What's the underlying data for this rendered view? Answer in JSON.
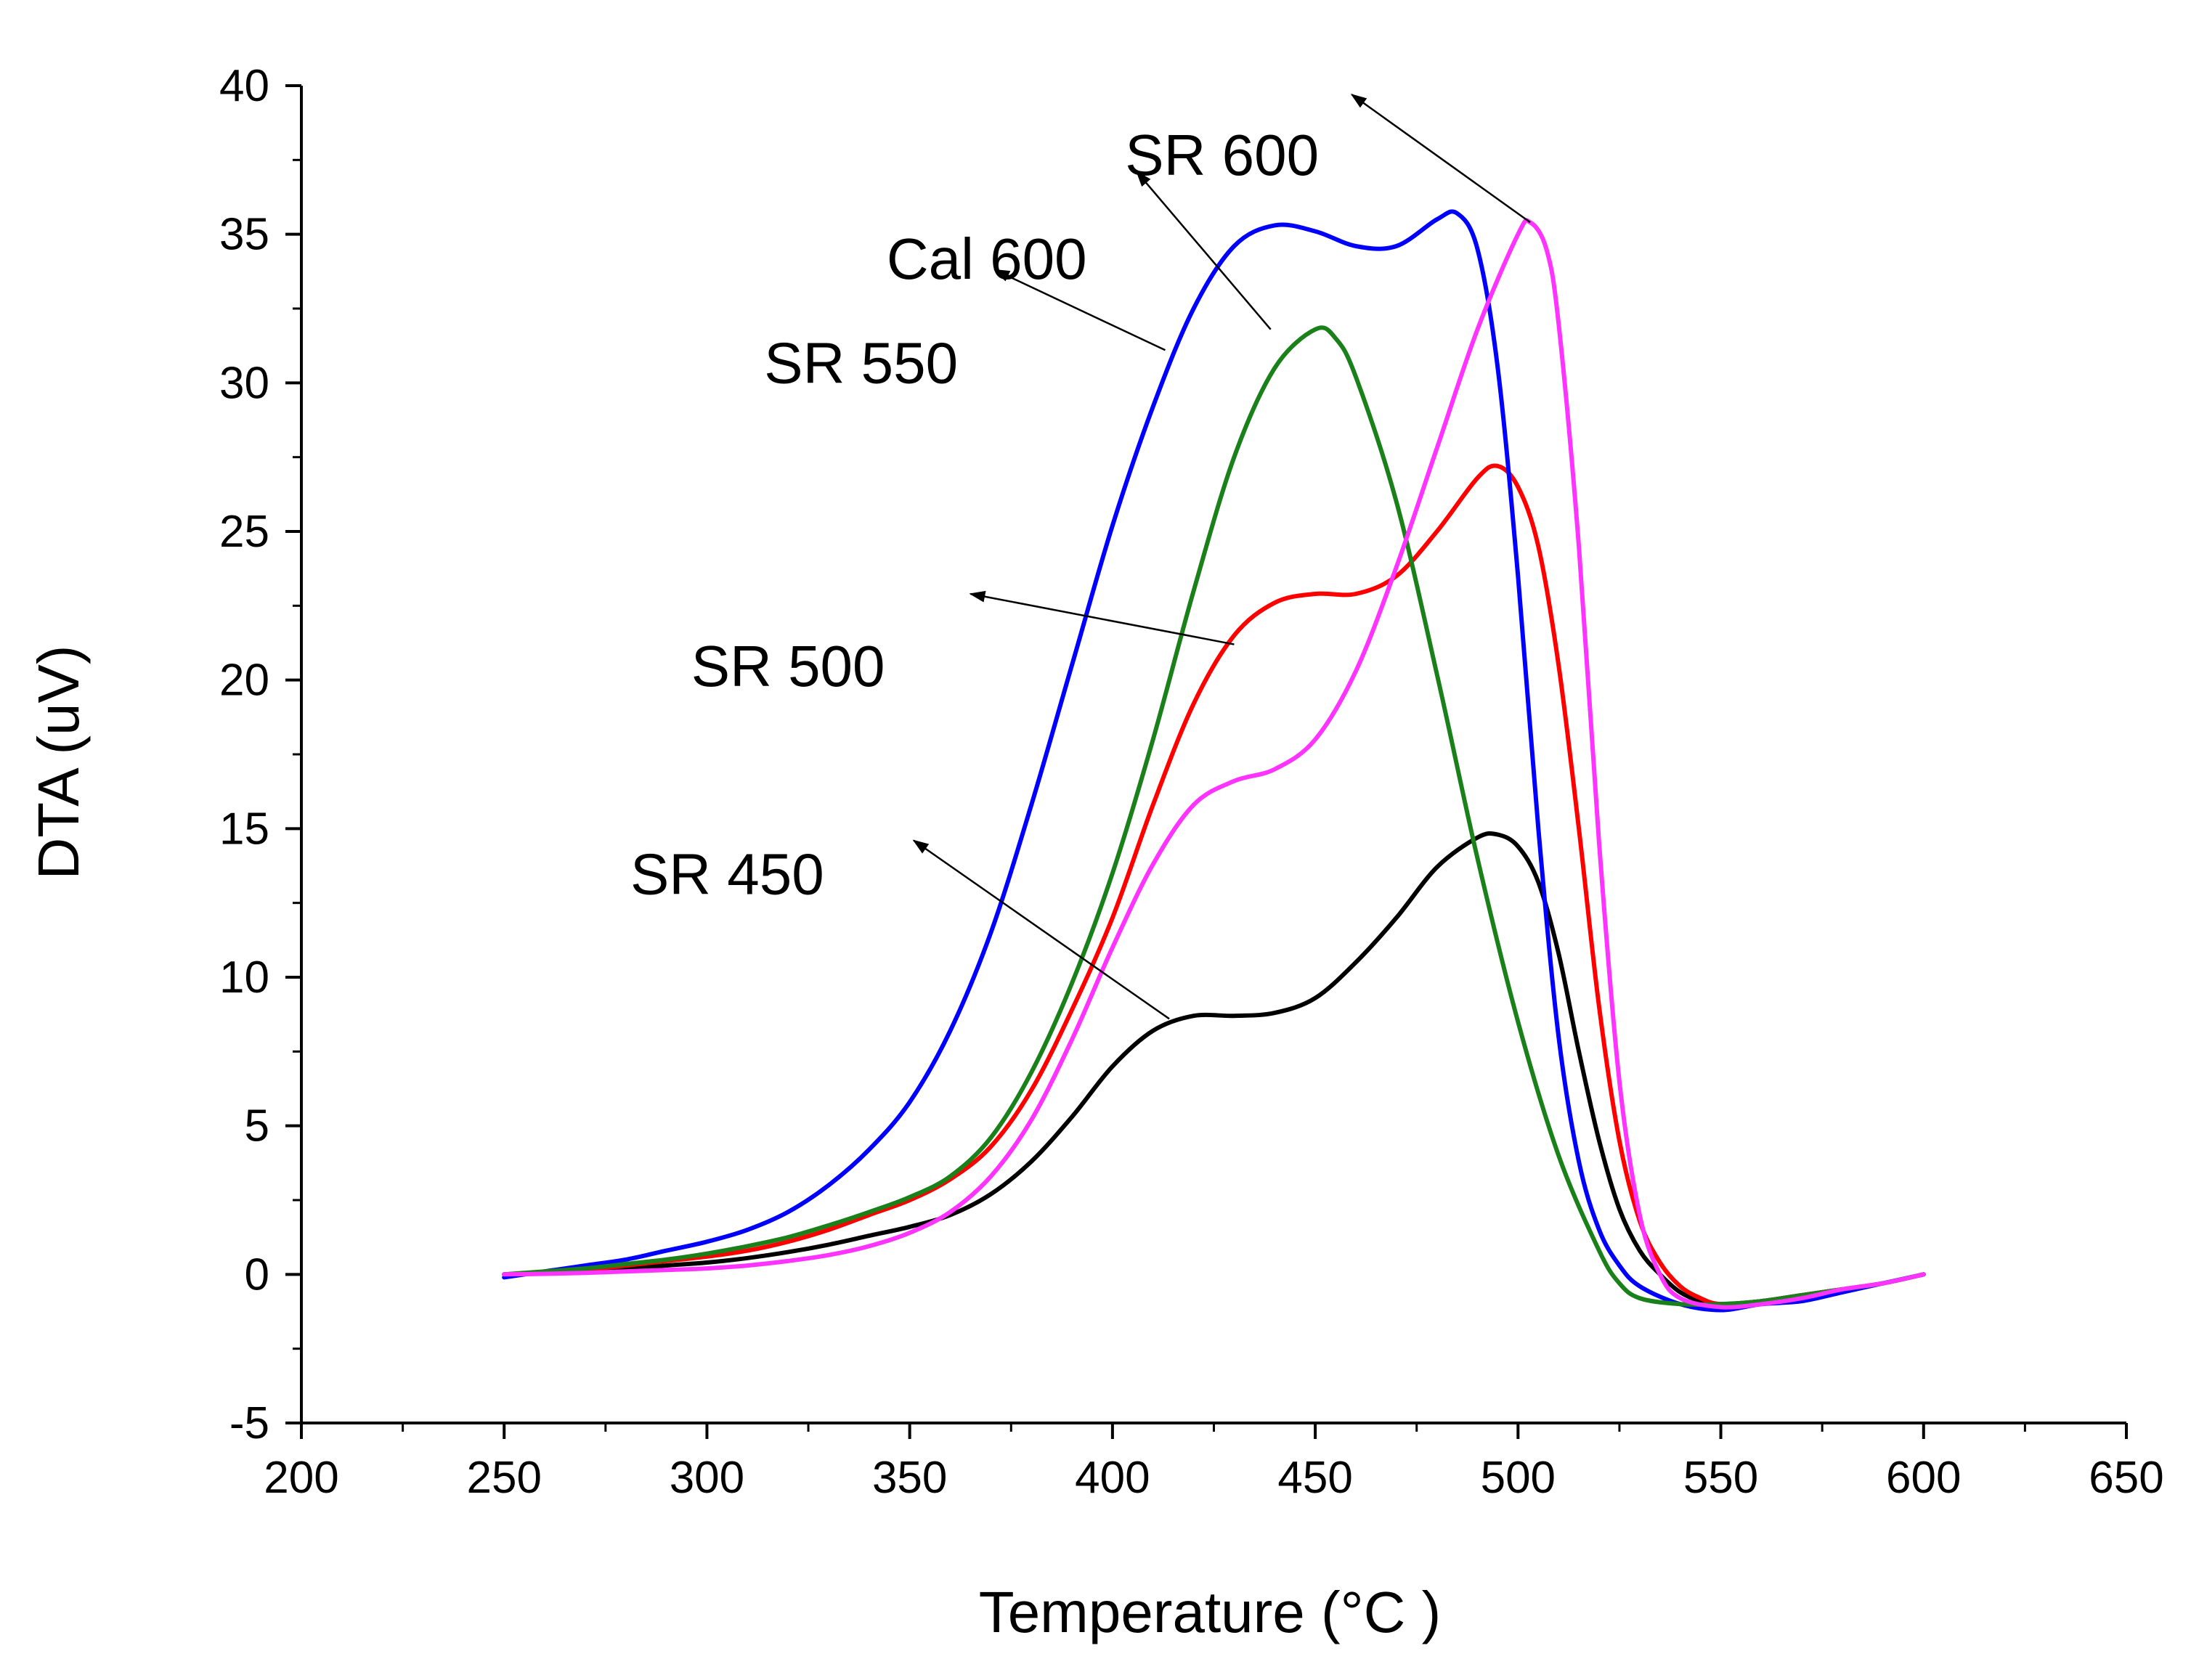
{
  "chart_data": {
    "type": "line",
    "title": "",
    "xlabel": "Temperature (°C )",
    "ylabel": "DTA (uV)",
    "xlim": [
      200,
      650
    ],
    "ylim": [
      -5,
      40
    ],
    "xticks": [
      200,
      250,
      300,
      350,
      400,
      450,
      500,
      550,
      600,
      650
    ],
    "yticks": [
      -5,
      0,
      5,
      10,
      15,
      20,
      25,
      30,
      35,
      40
    ],
    "grid": false,
    "legend": "none",
    "series": [
      {
        "name": "SR 450",
        "color": "#000000",
        "points": [
          [
            250,
            0
          ],
          [
            260,
            0.05
          ],
          [
            270,
            0.1
          ],
          [
            280,
            0.2
          ],
          [
            290,
            0.3
          ],
          [
            300,
            0.4
          ],
          [
            310,
            0.55
          ],
          [
            320,
            0.75
          ],
          [
            330,
            1.0
          ],
          [
            340,
            1.3
          ],
          [
            350,
            1.6
          ],
          [
            360,
            2.0
          ],
          [
            370,
            2.7
          ],
          [
            380,
            3.8
          ],
          [
            390,
            5.3
          ],
          [
            400,
            7.0
          ],
          [
            410,
            8.2
          ],
          [
            420,
            8.7
          ],
          [
            430,
            8.7
          ],
          [
            440,
            8.8
          ],
          [
            450,
            9.3
          ],
          [
            460,
            10.5
          ],
          [
            470,
            12.0
          ],
          [
            480,
            13.7
          ],
          [
            490,
            14.7
          ],
          [
            495,
            14.8
          ],
          [
            500,
            14.4
          ],
          [
            505,
            13.2
          ],
          [
            510,
            10.8
          ],
          [
            515,
            7.5
          ],
          [
            520,
            4.5
          ],
          [
            525,
            2.2
          ],
          [
            530,
            0.8
          ],
          [
            535,
            0.0
          ],
          [
            540,
            -0.6
          ],
          [
            545,
            -0.9
          ],
          [
            550,
            -1.0
          ],
          [
            560,
            -0.9
          ],
          [
            570,
            -0.7
          ],
          [
            580,
            -0.5
          ],
          [
            590,
            -0.3
          ],
          [
            600,
            0
          ]
        ]
      },
      {
        "name": "SR 500",
        "color": "#ff0000",
        "points": [
          [
            250,
            0
          ],
          [
            260,
            0.05
          ],
          [
            270,
            0.15
          ],
          [
            280,
            0.3
          ],
          [
            290,
            0.45
          ],
          [
            300,
            0.6
          ],
          [
            310,
            0.8
          ],
          [
            320,
            1.1
          ],
          [
            330,
            1.5
          ],
          [
            340,
            2.0
          ],
          [
            350,
            2.5
          ],
          [
            360,
            3.2
          ],
          [
            370,
            4.3
          ],
          [
            380,
            6.2
          ],
          [
            390,
            8.9
          ],
          [
            400,
            12.0
          ],
          [
            410,
            15.8
          ],
          [
            420,
            19.2
          ],
          [
            430,
            21.5
          ],
          [
            440,
            22.6
          ],
          [
            450,
            22.9
          ],
          [
            460,
            22.9
          ],
          [
            470,
            23.5
          ],
          [
            480,
            25.0
          ],
          [
            490,
            26.8
          ],
          [
            495,
            27.2
          ],
          [
            500,
            26.5
          ],
          [
            505,
            24.5
          ],
          [
            510,
            20.5
          ],
          [
            515,
            15.0
          ],
          [
            520,
            9.0
          ],
          [
            525,
            4.5
          ],
          [
            530,
            1.8
          ],
          [
            535,
            0.4
          ],
          [
            540,
            -0.4
          ],
          [
            545,
            -0.8
          ],
          [
            550,
            -1.0
          ],
          [
            560,
            -0.9
          ],
          [
            570,
            -0.7
          ],
          [
            580,
            -0.5
          ],
          [
            590,
            -0.3
          ],
          [
            600,
            0
          ]
        ]
      },
      {
        "name": "SR 550",
        "color": "#0000ff",
        "points": [
          [
            250,
            -0.1
          ],
          [
            260,
            0.1
          ],
          [
            270,
            0.3
          ],
          [
            280,
            0.5
          ],
          [
            290,
            0.8
          ],
          [
            300,
            1.1
          ],
          [
            310,
            1.5
          ],
          [
            320,
            2.1
          ],
          [
            330,
            3.0
          ],
          [
            340,
            4.2
          ],
          [
            350,
            5.8
          ],
          [
            360,
            8.2
          ],
          [
            370,
            11.5
          ],
          [
            380,
            15.8
          ],
          [
            390,
            20.5
          ],
          [
            400,
            25.2
          ],
          [
            410,
            29.2
          ],
          [
            420,
            32.5
          ],
          [
            430,
            34.6
          ],
          [
            440,
            35.3
          ],
          [
            450,
            35.1
          ],
          [
            460,
            34.6
          ],
          [
            470,
            34.6
          ],
          [
            480,
            35.5
          ],
          [
            485,
            35.7
          ],
          [
            490,
            34.5
          ],
          [
            495,
            30.5
          ],
          [
            500,
            23.5
          ],
          [
            505,
            15.0
          ],
          [
            510,
            8.0
          ],
          [
            515,
            3.8
          ],
          [
            520,
            1.5
          ],
          [
            525,
            0.3
          ],
          [
            530,
            -0.4
          ],
          [
            540,
            -1.0
          ],
          [
            550,
            -1.2
          ],
          [
            560,
            -1.0
          ],
          [
            570,
            -0.9
          ],
          [
            580,
            -0.6
          ],
          [
            590,
            -0.3
          ],
          [
            600,
            0
          ]
        ]
      },
      {
        "name": "Cal 600",
        "color": "#1a801a",
        "points": [
          [
            250,
            0
          ],
          [
            260,
            0.1
          ],
          [
            270,
            0.2
          ],
          [
            280,
            0.35
          ],
          [
            290,
            0.5
          ],
          [
            300,
            0.7
          ],
          [
            310,
            0.95
          ],
          [
            320,
            1.25
          ],
          [
            330,
            1.65
          ],
          [
            340,
            2.1
          ],
          [
            350,
            2.6
          ],
          [
            360,
            3.3
          ],
          [
            370,
            4.6
          ],
          [
            380,
            6.8
          ],
          [
            390,
            9.8
          ],
          [
            400,
            13.5
          ],
          [
            410,
            18.0
          ],
          [
            420,
            23.0
          ],
          [
            430,
            27.5
          ],
          [
            440,
            30.5
          ],
          [
            450,
            31.8
          ],
          [
            455,
            31.5
          ],
          [
            460,
            30.2
          ],
          [
            470,
            26.0
          ],
          [
            480,
            20.2
          ],
          [
            490,
            14.0
          ],
          [
            500,
            8.5
          ],
          [
            510,
            4.0
          ],
          [
            520,
            0.8
          ],
          [
            525,
            -0.3
          ],
          [
            530,
            -0.8
          ],
          [
            540,
            -1.0
          ],
          [
            550,
            -1.0
          ],
          [
            560,
            -0.9
          ],
          [
            570,
            -0.7
          ],
          [
            580,
            -0.5
          ],
          [
            590,
            -0.3
          ],
          [
            600,
            0
          ]
        ]
      },
      {
        "name": "SR 600",
        "color": "#ff33ff",
        "points": [
          [
            250,
            0
          ],
          [
            260,
            0.02
          ],
          [
            270,
            0.05
          ],
          [
            280,
            0.1
          ],
          [
            290,
            0.15
          ],
          [
            300,
            0.2
          ],
          [
            310,
            0.3
          ],
          [
            320,
            0.45
          ],
          [
            330,
            0.65
          ],
          [
            340,
            0.95
          ],
          [
            350,
            1.4
          ],
          [
            360,
            2.1
          ],
          [
            370,
            3.3
          ],
          [
            380,
            5.2
          ],
          [
            390,
            7.9
          ],
          [
            400,
            11.0
          ],
          [
            410,
            13.8
          ],
          [
            420,
            15.8
          ],
          [
            430,
            16.6
          ],
          [
            440,
            17.0
          ],
          [
            450,
            18.0
          ],
          [
            460,
            20.3
          ],
          [
            470,
            23.8
          ],
          [
            480,
            27.8
          ],
          [
            490,
            31.8
          ],
          [
            500,
            35.0
          ],
          [
            503,
            35.4
          ],
          [
            507,
            34.5
          ],
          [
            510,
            32.0
          ],
          [
            515,
            24.5
          ],
          [
            520,
            14.5
          ],
          [
            525,
            6.5
          ],
          [
            530,
            2.0
          ],
          [
            535,
            0.0
          ],
          [
            540,
            -0.8
          ],
          [
            550,
            -1.1
          ],
          [
            560,
            -1.0
          ],
          [
            570,
            -0.8
          ],
          [
            580,
            -0.5
          ],
          [
            590,
            -0.3
          ],
          [
            600,
            0
          ]
        ]
      }
    ],
    "annotations": [
      {
        "label": "SR 600",
        "label_pos": [
          427,
          37
        ],
        "arrow_from": [
          503,
          35.4
        ],
        "arrow_to": [
          459,
          39.7
        ]
      },
      {
        "label": "Cal 600",
        "label_pos": [
          369,
          33.5
        ],
        "arrow_from": [
          439,
          31.8
        ],
        "arrow_to": [
          406,
          37.1
        ]
      },
      {
        "label": "SR 550",
        "label_pos": [
          338,
          30
        ],
        "arrow_from": [
          413,
          31.1
        ],
        "arrow_to": [
          371,
          33.8
        ]
      },
      {
        "label": "SR 500",
        "label_pos": [
          320,
          19.8
        ],
        "arrow_from": [
          430,
          21.2
        ],
        "arrow_to": [
          365,
          22.9
        ]
      },
      {
        "label": "SR 450",
        "label_pos": [
          305,
          12.8
        ],
        "arrow_from": [
          414,
          8.6
        ],
        "arrow_to": [
          351,
          14.6
        ]
      }
    ]
  }
}
